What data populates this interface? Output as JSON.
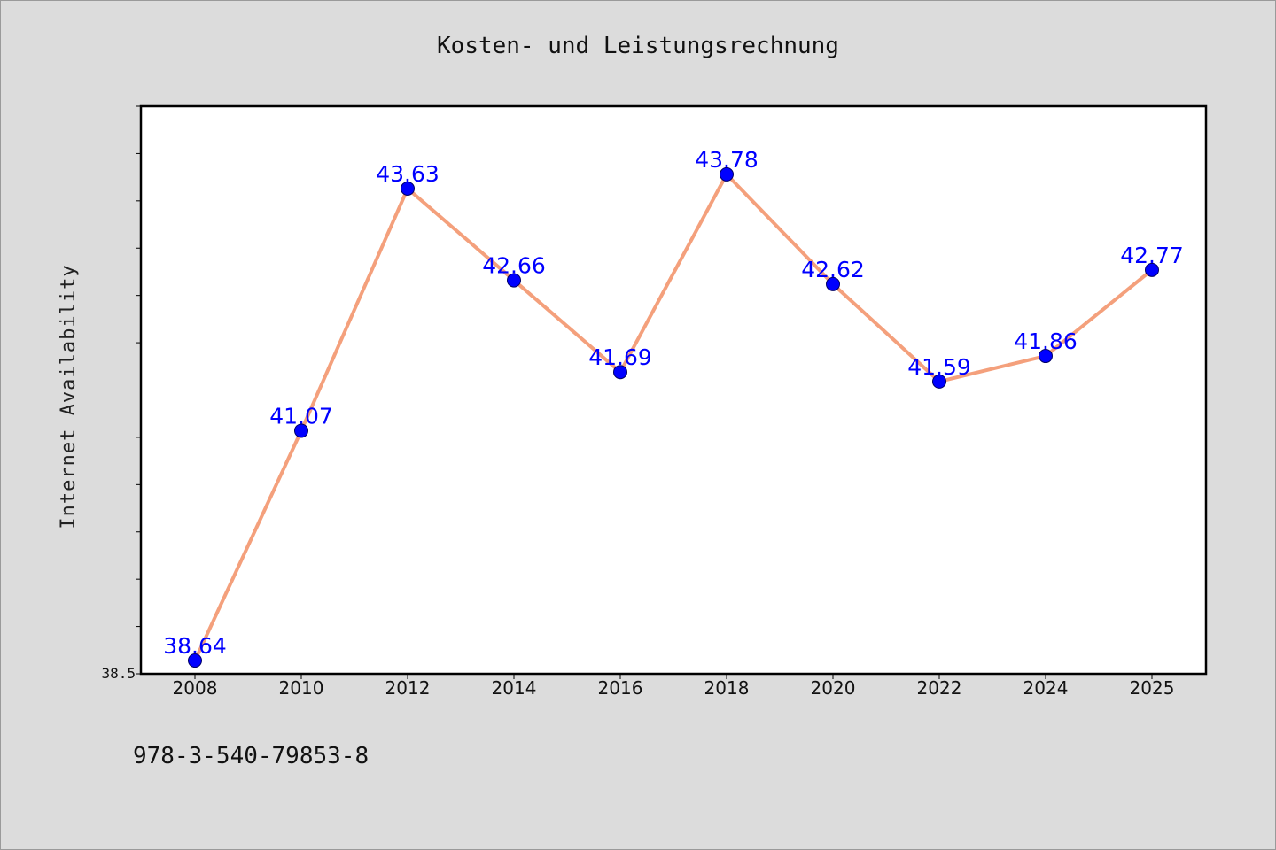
{
  "footer": {
    "text": "978-3-540-79853-8"
  },
  "colors": {
    "background": "#dcdcdc",
    "plot_background": "#ffffff",
    "line": "#f4a07c",
    "marker": "#0000ff",
    "data_label": "#0000ff"
  },
  "chart_data": {
    "type": "line",
    "title": "Kosten- und Leistungsrechnung",
    "xlabel": "",
    "ylabel": "Internet Availability",
    "categories": [
      "2008",
      "2010",
      "2012",
      "2014",
      "2016",
      "2018",
      "2020",
      "2022",
      "2024",
      "2025"
    ],
    "series": [
      {
        "values": [
          38.64,
          41.07,
          43.63,
          42.66,
          41.69,
          43.78,
          42.62,
          41.59,
          41.86,
          42.77
        ],
        "data_labels": [
          "38.64",
          "41.07",
          "43.63",
          "42.66",
          "41.69",
          "43.78",
          "42.62",
          "41.59",
          "41.86",
          "42.77"
        ]
      }
    ],
    "ylim": [
      38.5,
      44.5
    ],
    "ytick_labels": [
      "38.5"
    ],
    "minor_tick_step": 0.5,
    "grid": false,
    "legend": "none"
  }
}
